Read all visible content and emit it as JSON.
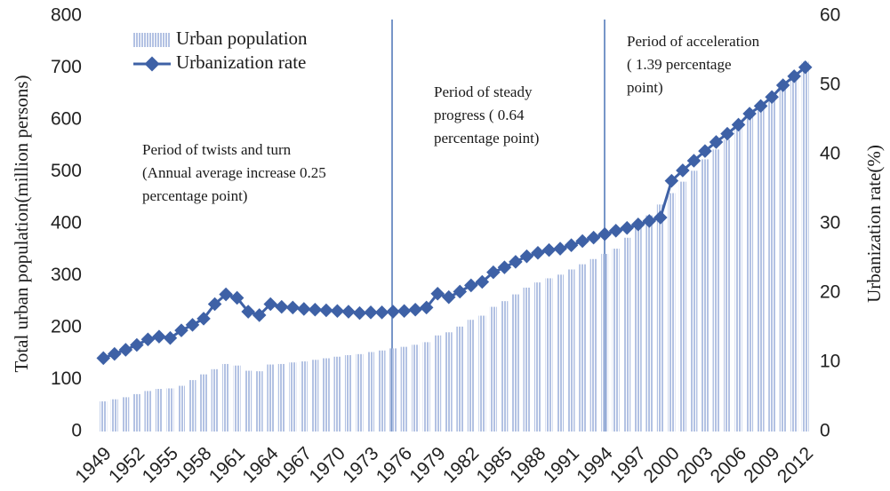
{
  "chart_data": {
    "type": "bar_line",
    "categories": [
      "1949",
      null,
      null,
      "1952",
      null,
      null,
      "1955",
      null,
      null,
      "1958",
      null,
      null,
      "1961",
      null,
      null,
      "1964",
      null,
      null,
      "1967",
      null,
      null,
      "1970",
      null,
      null,
      "1973",
      null,
      null,
      "1976",
      null,
      null,
      "1979",
      null,
      null,
      "1982",
      null,
      null,
      "1985",
      null,
      null,
      "1988",
      null,
      null,
      "1991",
      null,
      null,
      "1994",
      null,
      null,
      "1997",
      null,
      null,
      "2000",
      null,
      null,
      "2003",
      null,
      null,
      "2006",
      null,
      null,
      "2009",
      null,
      null,
      "2012"
    ],
    "series": [
      {
        "name": "Urban population",
        "color": "#b3c2e3",
        "type": "bar",
        "values": [
          58,
          62,
          66,
          72,
          78,
          82,
          83,
          88,
          99,
          110,
          120,
          130,
          127,
          117,
          116,
          129,
          130,
          133,
          135,
          138,
          141,
          144,
          147,
          149,
          153,
          156,
          160,
          163,
          167,
          172,
          185,
          191,
          202,
          215,
          223,
          240,
          251,
          264,
          277,
          287,
          295,
          302,
          312,
          322,
          332,
          342,
          352,
          373,
          394,
          416,
          437,
          459,
          481,
          502,
          524,
          543,
          562,
          583,
          606,
          624,
          645,
          670,
          691,
          712
        ]
      },
      {
        "name": "Urbanization rate",
        "color": "#3e61a6",
        "type": "line",
        "axis": "y2",
        "values": [
          10.6,
          11.2,
          11.8,
          12.5,
          13.3,
          13.7,
          13.5,
          14.6,
          15.4,
          16.3,
          18.4,
          19.8,
          19.3,
          17.3,
          16.8,
          18.4,
          18.0,
          17.9,
          17.7,
          17.6,
          17.5,
          17.4,
          17.3,
          17.1,
          17.2,
          17.2,
          17.3,
          17.4,
          17.6,
          17.9,
          19.9,
          19.4,
          20.2,
          21.1,
          21.6,
          23.0,
          23.7,
          24.5,
          25.3,
          25.8,
          26.2,
          26.4,
          26.9,
          27.5,
          28.0,
          28.5,
          29.0,
          29.4,
          29.9,
          30.4,
          30.9,
          36.2,
          37.7,
          39.1,
          40.5,
          41.8,
          43.0,
          44.3,
          45.9,
          47.0,
          48.3,
          50.0,
          51.3,
          52.6
        ]
      }
    ],
    "ylabel": "Total urban population(million persons)",
    "y2label": "Urbanization rate(%)",
    "ylim": [
      0,
      800
    ],
    "yticks": [
      0,
      100,
      200,
      300,
      400,
      500,
      600,
      700,
      800
    ],
    "y2lim": [
      0,
      60
    ],
    "y2ticks": [
      0,
      10,
      20,
      30,
      40,
      50,
      60
    ],
    "legend": "upper left",
    "annotations": [
      [
        "Period of twists and turn",
        "(Annual average increase 0.25",
        "percentage point)"
      ],
      [
        "Period of steady",
        "progress ( 0.64",
        "percentage point)"
      ],
      [
        "Period of acceleration",
        "( 1.39 percentage",
        "point)"
      ]
    ]
  }
}
